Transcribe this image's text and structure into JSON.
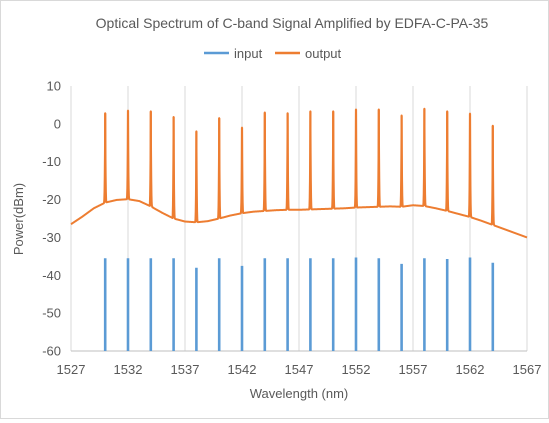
{
  "chart_data": {
    "type": "line",
    "title": "Optical Spectrum of C-band Signal Amplified by EDFA-C-PA-35",
    "xlabel": "Wavelength (nm)",
    "ylabel": "Power(dBm)",
    "xlim": [
      1527,
      1567
    ],
    "ylim": [
      -60,
      10
    ],
    "xticks": [
      "1527",
      "1532",
      "1537",
      "1542",
      "1547",
      "1552",
      "1557",
      "1562",
      "1567"
    ],
    "yticks": [
      "10",
      "0",
      "-10",
      "-20",
      "-30",
      "-40",
      "-50",
      "-60"
    ],
    "grid": "vertical",
    "legend_position": "top-center",
    "series": [
      {
        "name": "input",
        "color": "#5B9BD5",
        "style": "spectral-lines",
        "channels_nm": [
          1530.0,
          1532.0,
          1534.0,
          1536.0,
          1538.0,
          1540.0,
          1542.0,
          1544.0,
          1546.0,
          1548.0,
          1550.0,
          1552.0,
          1554.0,
          1556.0,
          1558.0,
          1560.0,
          1562.0,
          1564.0
        ],
        "peak_dbm": [
          -35.5,
          -35.5,
          -35.5,
          -35.5,
          -38.0,
          -35.5,
          -37.5,
          -35.5,
          -35.5,
          -35.5,
          -35.5,
          -35.3,
          -35.5,
          -37.0,
          -35.5,
          -35.7,
          -35.3,
          -36.7
        ],
        "floor_dbm": -60
      },
      {
        "name": "output",
        "color": "#ED7D31",
        "style": "spectrum",
        "baseline": {
          "x": [
            1527,
            1528,
            1529,
            1530,
            1531,
            1532,
            1533,
            1534,
            1535,
            1536,
            1537,
            1538,
            1539,
            1540,
            1541,
            1542,
            1543,
            1544,
            1545,
            1546,
            1547,
            1548,
            1549,
            1550,
            1551,
            1552,
            1553,
            1554,
            1555,
            1556,
            1557,
            1558,
            1559,
            1560,
            1561,
            1562,
            1563,
            1564,
            1565,
            1566,
            1567
          ],
          "y": [
            -26.5,
            -24.5,
            -22.3,
            -20.8,
            -20.1,
            -19.9,
            -20.4,
            -21.8,
            -23.5,
            -25.0,
            -25.8,
            -26.0,
            -25.7,
            -25.0,
            -24.2,
            -23.6,
            -23.2,
            -23.0,
            -22.8,
            -22.7,
            -22.7,
            -22.6,
            -22.5,
            -22.4,
            -22.3,
            -22.1,
            -22.0,
            -21.9,
            -21.8,
            -21.9,
            -21.5,
            -21.7,
            -22.3,
            -23.0,
            -23.8,
            -24.6,
            -25.6,
            -26.7,
            -27.8,
            -28.9,
            -30.0
          ]
        },
        "channels_nm": [
          1530.0,
          1532.0,
          1534.0,
          1536.0,
          1538.0,
          1540.0,
          1542.0,
          1544.0,
          1546.0,
          1548.0,
          1550.0,
          1552.0,
          1554.0,
          1556.0,
          1558.0,
          1560.0,
          1562.0,
          1564.0
        ],
        "peak_dbm": [
          2.8,
          3.5,
          3.3,
          1.8,
          -2.0,
          1.5,
          -1.0,
          3.0,
          2.8,
          3.3,
          3.3,
          3.8,
          3.8,
          2.2,
          4.0,
          3.3,
          2.7,
          -0.5
        ]
      }
    ]
  }
}
